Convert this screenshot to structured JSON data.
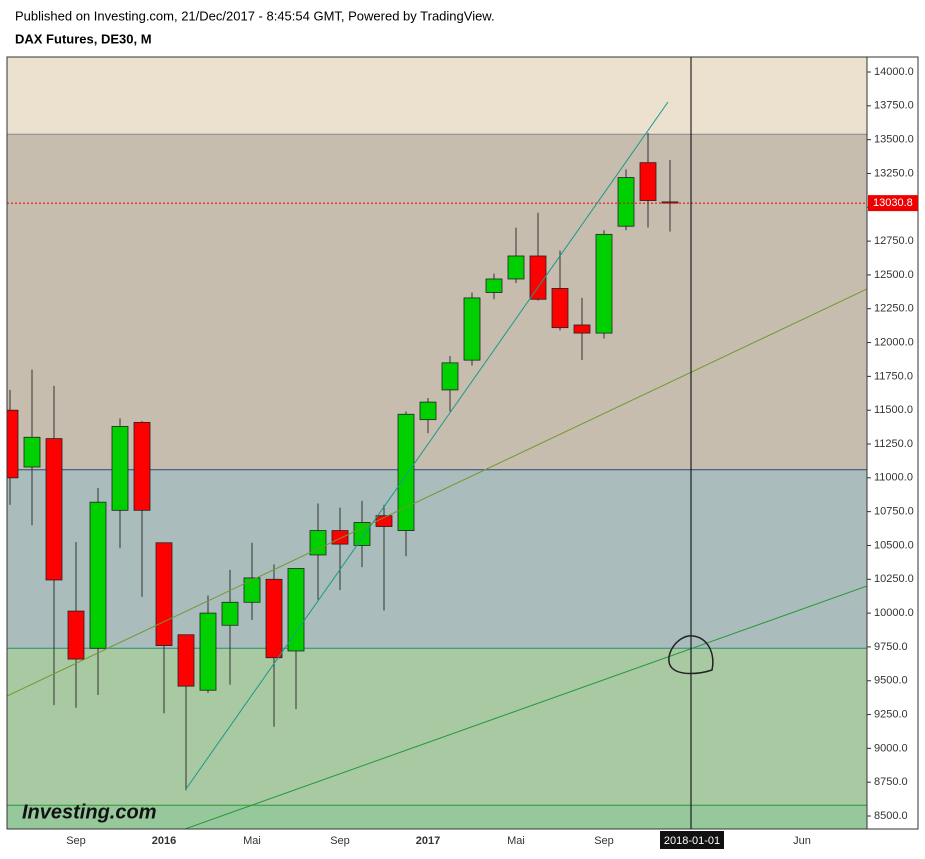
{
  "header": {
    "published": "Published on Investing.com, 21/Dec/2017 - 8:45:54 GMT, Powered by TradingView.",
    "title": "DAX Futures, DE30, M"
  },
  "chart_data": {
    "type": "candlestick",
    "watermark": "Investing.com",
    "categories": [
      null,
      null,
      null,
      "Sep",
      null,
      null,
      null,
      "2016",
      null,
      null,
      null,
      "Mai",
      null,
      null,
      null,
      "Sep",
      null,
      null,
      null,
      "2017",
      null,
      null,
      null,
      "Mai",
      null,
      null,
      null,
      "Sep",
      null,
      null,
      null,
      "2018-01-01",
      null,
      null,
      null,
      null,
      "Jun",
      null,
      null
    ],
    "series": [
      {
        "name": "open",
        "values": [
          11500,
          11080,
          11290,
          10015,
          9740,
          10760,
          11410,
          10520,
          9840,
          9430,
          9910,
          10080,
          10250,
          9720,
          10430,
          10610,
          10500,
          10720,
          10610,
          11430,
          11650,
          11870,
          12370,
          12470,
          12640,
          12400,
          12130,
          12070,
          12860,
          13330,
          13040,
          null,
          null,
          null,
          null,
          null,
          null,
          null,
          null
        ]
      },
      {
        "name": "high",
        "values": [
          11650,
          11800,
          11680,
          10525,
          10925,
          11440,
          11420,
          10520,
          9840,
          10130,
          10320,
          10520,
          10360,
          10330,
          10810,
          10780,
          10830,
          10800,
          11490,
          11590,
          11900,
          12370,
          12510,
          12850,
          12960,
          12680,
          12330,
          12830,
          13280,
          13550,
          13350,
          null,
          null,
          null,
          null,
          null,
          null,
          null,
          null
        ]
      },
      {
        "name": "low",
        "values": [
          10800,
          10650,
          9320,
          9300,
          9395,
          10480,
          10120,
          9260,
          8690,
          9410,
          9470,
          9950,
          9160,
          9290,
          10100,
          10170,
          10340,
          10020,
          10420,
          11330,
          11490,
          11830,
          12320,
          12440,
          12310,
          12090,
          11870,
          12030,
          12830,
          12850,
          12820,
          null,
          null,
          null,
          null,
          null,
          null,
          null,
          null
        ]
      },
      {
        "name": "close",
        "values": [
          11000,
          11300,
          10245,
          9660,
          10820,
          11380,
          10760,
          9760,
          9460,
          10000,
          10080,
          10260,
          9670,
          10330,
          10610,
          10510,
          10670,
          10640,
          11470,
          11560,
          11850,
          12330,
          12470,
          12640,
          12320,
          12110,
          12070,
          12800,
          13220,
          13050,
          13031,
          null,
          null,
          null,
          null,
          null,
          null,
          null,
          null
        ]
      }
    ],
    "up_color": "#00d000",
    "down_color": "#ff0000",
    "last_price": 13030.8,
    "levels": [
      13540,
      11060,
      9740,
      8580
    ],
    "ylim": [
      8404,
      14111
    ],
    "yticks": [
      {
        "value": 8500,
        "label": "8500.0"
      },
      {
        "value": 8750,
        "label": "8750.0"
      },
      {
        "value": 9000,
        "label": "9000.0"
      },
      {
        "value": 9250,
        "label": "9250.0"
      },
      {
        "value": 9500,
        "label": "9500.0"
      },
      {
        "value": 9750,
        "label": "9750.0"
      },
      {
        "value": 10000,
        "label": "10000.0"
      },
      {
        "value": 10250,
        "label": "10250.0"
      },
      {
        "value": 10500,
        "label": "10500.0"
      },
      {
        "value": 10750,
        "label": "10750.0"
      },
      {
        "value": 11000,
        "label": "11000.0"
      },
      {
        "value": 11250,
        "label": "11250.0"
      },
      {
        "value": 11500,
        "label": "11500.0"
      },
      {
        "value": 11750,
        "label": "11750.0"
      },
      {
        "value": 12000,
        "label": "12000.0"
      },
      {
        "value": 12250,
        "label": "12250.0"
      },
      {
        "value": 12500,
        "label": "12500.0"
      },
      {
        "value": 12750,
        "label": "12750.0"
      },
      {
        "value": 13000,
        "label": "13000.0"
      },
      {
        "value": 13250,
        "label": "13250.0"
      },
      {
        "value": 13500,
        "label": "13500.0"
      },
      {
        "value": 13750,
        "label": "13750.0"
      },
      {
        "value": 14000,
        "label": "14000.0"
      }
    ]
  }
}
